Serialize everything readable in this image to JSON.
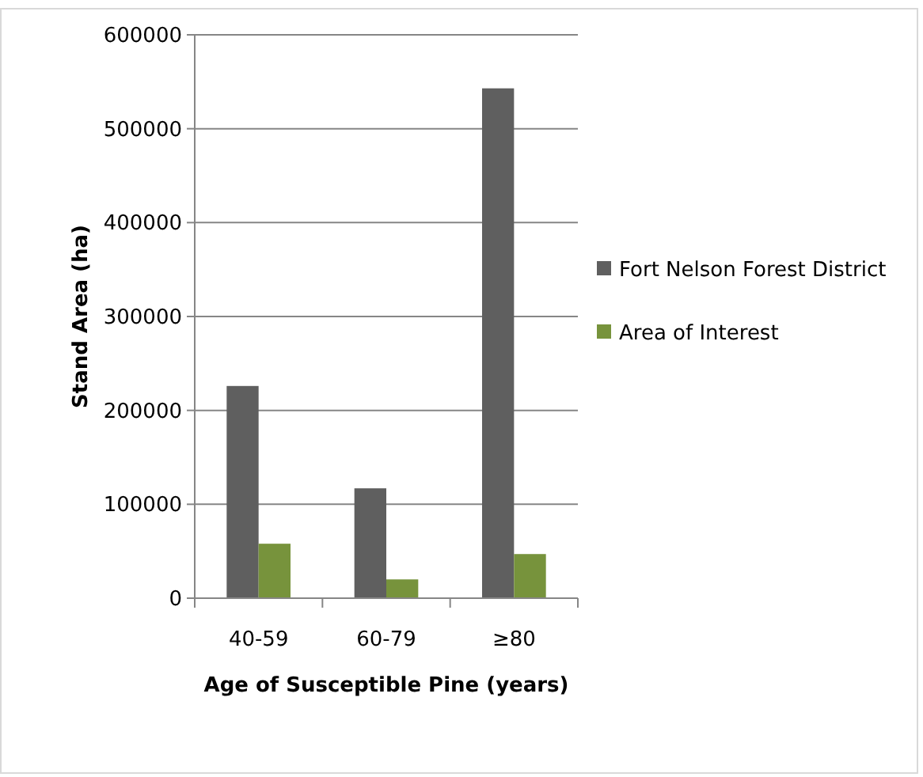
{
  "chart_data": {
    "type": "bar",
    "xlabel": "Age of Susceptible Pine (years)",
    "ylabel": "Stand Area (ha)",
    "categories": [
      "40-59",
      "60-79",
      "≥80"
    ],
    "series": [
      {
        "name": "Fort Nelson Forest District",
        "color": "#5f5f5f",
        "values": [
          226000,
          117000,
          543000
        ]
      },
      {
        "name": "Area of Interest",
        "color": "#77933c",
        "values": [
          58000,
          20000,
          47000
        ]
      }
    ],
    "ylim": [
      0,
      600000
    ],
    "yticks": [
      0,
      100000,
      200000,
      300000,
      400000,
      500000,
      600000
    ],
    "grid": "y",
    "legend": "right"
  }
}
